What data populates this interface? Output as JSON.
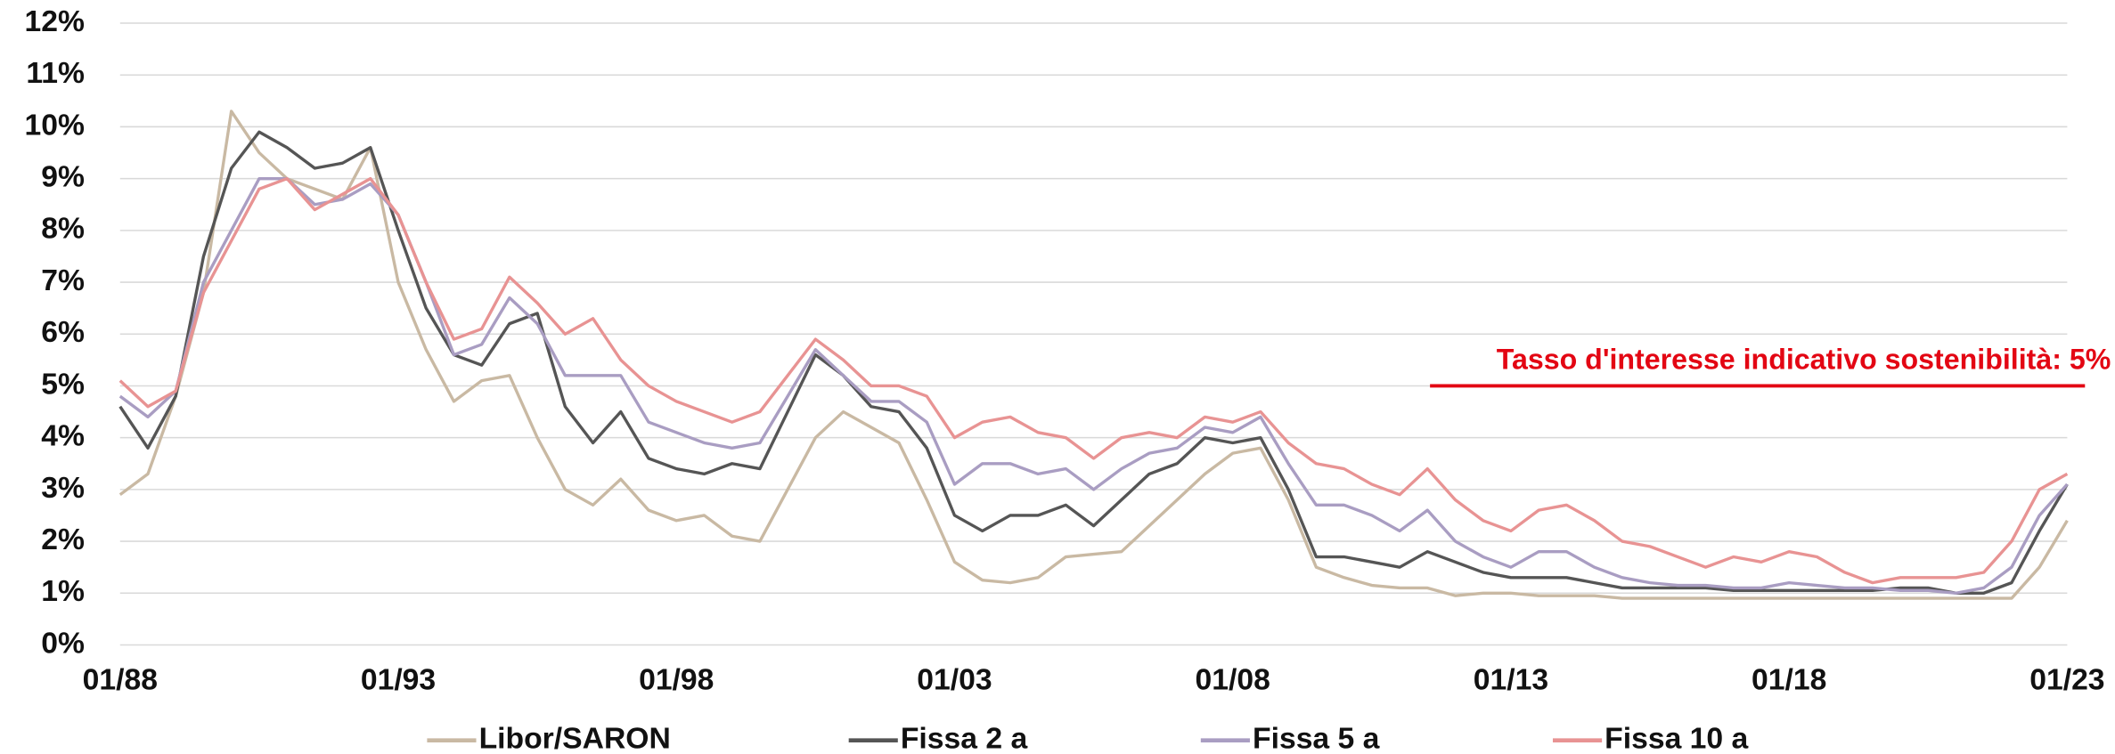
{
  "chart_data": {
    "type": "line",
    "annotation": "Tasso d'interesse indicativo sostenibilità: 5%",
    "threshold": 5,
    "threshold_color": "#e30613",
    "x": [
      1988,
      1988.5,
      1989,
      1989.5,
      1990,
      1990.5,
      1991,
      1991.5,
      1992,
      1992.5,
      1993,
      1993.5,
      1994,
      1994.5,
      1995,
      1995.5,
      1996,
      1996.5,
      1997,
      1997.5,
      1998,
      1998.5,
      1999,
      1999.5,
      2000,
      2000.5,
      2001,
      2001.5,
      2002,
      2002.5,
      2003,
      2003.5,
      2004,
      2004.5,
      2005,
      2005.5,
      2006,
      2006.5,
      2007,
      2007.5,
      2008,
      2008.5,
      2009,
      2009.5,
      2010,
      2010.5,
      2011,
      2011.5,
      2012,
      2012.5,
      2013,
      2013.5,
      2014,
      2014.5,
      2015,
      2015.5,
      2016,
      2016.5,
      2017,
      2017.5,
      2018,
      2018.5,
      2019,
      2019.5,
      2020,
      2020.5,
      2021,
      2021.5,
      2022,
      2022.5,
      2023
    ],
    "xlim": [
      1988,
      2023
    ],
    "xticks": [
      {
        "value": 1988,
        "label": "01/88"
      },
      {
        "value": 1993,
        "label": "01/93"
      },
      {
        "value": 1998,
        "label": "01/98"
      },
      {
        "value": 2003,
        "label": "01/03"
      },
      {
        "value": 2008,
        "label": "01/08"
      },
      {
        "value": 2013,
        "label": "01/13"
      },
      {
        "value": 2018,
        "label": "01/18"
      },
      {
        "value": 2023,
        "label": "01/23"
      }
    ],
    "ylim": [
      0,
      12
    ],
    "yticks": [
      {
        "value": 0,
        "label": "0%"
      },
      {
        "value": 1,
        "label": "1%"
      },
      {
        "value": 2,
        "label": "2%"
      },
      {
        "value": 3,
        "label": "3%"
      },
      {
        "value": 4,
        "label": "4%"
      },
      {
        "value": 5,
        "label": "5%"
      },
      {
        "value": 6,
        "label": "6%"
      },
      {
        "value": 7,
        "label": "7%"
      },
      {
        "value": 8,
        "label": "8%"
      },
      {
        "value": 9,
        "label": "9%"
      },
      {
        "value": 10,
        "label": "10%"
      },
      {
        "value": 11,
        "label": "11%"
      },
      {
        "value": 12,
        "label": "12%"
      }
    ],
    "grid": true,
    "legend": "bottom",
    "series": [
      {
        "name": "Libor/SARON",
        "color": "#c9b9a3",
        "values": [
          2.9,
          3.3,
          4.8,
          6.8,
          10.3,
          9.5,
          9.0,
          8.8,
          8.6,
          9.6,
          7.0,
          5.7,
          4.7,
          5.1,
          5.2,
          4.0,
          3.0,
          2.7,
          3.2,
          2.6,
          2.4,
          2.5,
          2.1,
          2.0,
          3.0,
          4.0,
          4.5,
          4.2,
          3.9,
          2.8,
          1.6,
          1.25,
          1.2,
          1.3,
          1.7,
          1.75,
          1.8,
          2.3,
          2.8,
          3.3,
          3.7,
          3.8,
          2.8,
          1.5,
          1.3,
          1.15,
          1.1,
          1.1,
          0.95,
          1.0,
          1.0,
          0.95,
          0.95,
          0.95,
          0.9,
          0.9,
          0.9,
          0.9,
          0.9,
          0.9,
          0.9,
          0.9,
          0.9,
          0.9,
          0.9,
          0.9,
          0.9,
          0.9,
          0.9,
          1.5,
          2.4
        ]
      },
      {
        "name": "Fissa 2 a",
        "color": "#555555",
        "values": [
          4.6,
          3.8,
          4.8,
          7.5,
          9.2,
          9.9,
          9.6,
          9.2,
          9.3,
          9.6,
          8.0,
          6.5,
          5.6,
          5.4,
          6.2,
          6.4,
          4.6,
          3.9,
          4.5,
          3.6,
          3.4,
          3.3,
          3.5,
          3.4,
          4.5,
          5.6,
          5.2,
          4.6,
          4.5,
          3.8,
          2.5,
          2.2,
          2.5,
          2.5,
          2.7,
          2.3,
          2.8,
          3.3,
          3.5,
          4.0,
          3.9,
          4.0,
          3.0,
          1.7,
          1.7,
          1.6,
          1.5,
          1.8,
          1.6,
          1.4,
          1.3,
          1.3,
          1.3,
          1.2,
          1.1,
          1.1,
          1.1,
          1.1,
          1.05,
          1.05,
          1.05,
          1.05,
          1.05,
          1.05,
          1.1,
          1.1,
          1.0,
          1.0,
          1.2,
          2.2,
          3.1
        ]
      },
      {
        "name": "Fissa 5 a",
        "color": "#a99dc2",
        "values": [
          4.8,
          4.4,
          4.9,
          7.0,
          8.0,
          9.0,
          9.0,
          8.5,
          8.6,
          8.9,
          8.3,
          7.0,
          5.6,
          5.8,
          6.7,
          6.2,
          5.2,
          5.2,
          5.2,
          4.3,
          4.1,
          3.9,
          3.8,
          3.9,
          4.8,
          5.7,
          5.2,
          4.7,
          4.7,
          4.3,
          3.1,
          3.5,
          3.5,
          3.3,
          3.4,
          3.0,
          3.4,
          3.7,
          3.8,
          4.2,
          4.1,
          4.4,
          3.5,
          2.7,
          2.7,
          2.5,
          2.2,
          2.6,
          2.0,
          1.7,
          1.5,
          1.8,
          1.8,
          1.5,
          1.3,
          1.2,
          1.15,
          1.15,
          1.1,
          1.1,
          1.2,
          1.15,
          1.1,
          1.1,
          1.05,
          1.05,
          1.0,
          1.1,
          1.5,
          2.5,
          3.1
        ]
      },
      {
        "name": "Fissa 10 a",
        "color": "#e89393",
        "values": [
          5.1,
          4.6,
          4.9,
          6.8,
          7.8,
          8.8,
          9.0,
          8.4,
          8.7,
          9.0,
          8.3,
          7.0,
          5.9,
          6.1,
          7.1,
          6.6,
          6.0,
          6.3,
          5.5,
          5.0,
          4.7,
          4.5,
          4.3,
          4.5,
          5.2,
          5.9,
          5.5,
          5.0,
          5.0,
          4.8,
          4.0,
          4.3,
          4.4,
          4.1,
          4.0,
          3.6,
          4.0,
          4.1,
          4.0,
          4.4,
          4.3,
          4.5,
          3.9,
          3.5,
          3.4,
          3.1,
          2.9,
          3.4,
          2.8,
          2.4,
          2.2,
          2.6,
          2.7,
          2.4,
          2.0,
          1.9,
          1.7,
          1.5,
          1.7,
          1.6,
          1.8,
          1.7,
          1.4,
          1.2,
          1.3,
          1.3,
          1.3,
          1.4,
          2.0,
          3.0,
          3.3
        ]
      }
    ]
  }
}
